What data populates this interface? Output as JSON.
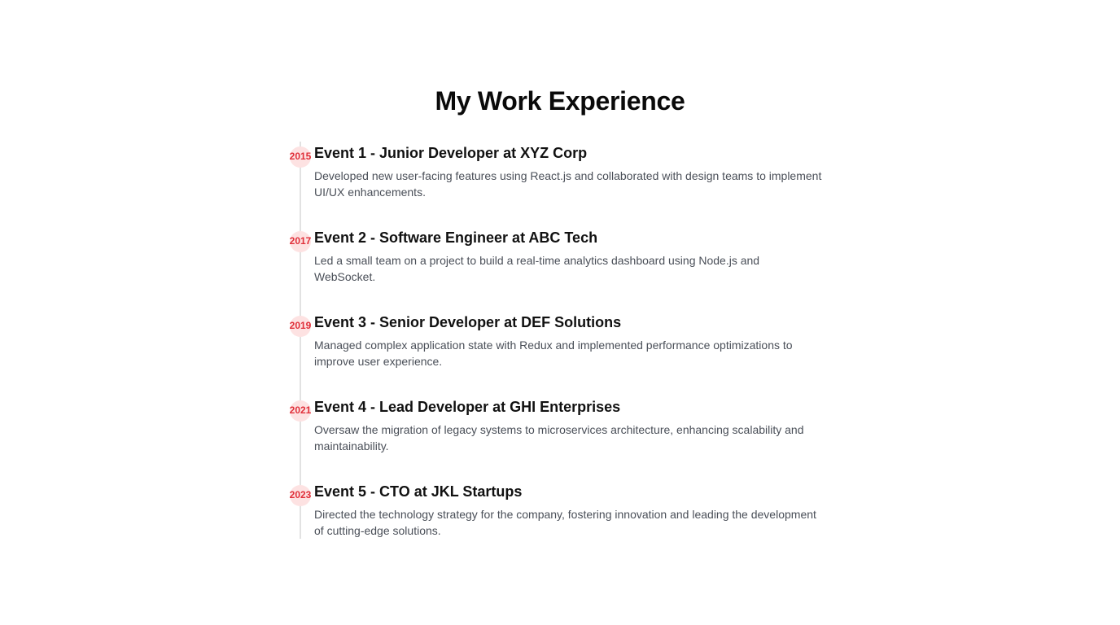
{
  "page": {
    "title": "My Work Experience"
  },
  "colors": {
    "accent": "#e0303a",
    "dot_background": "#fde2e2",
    "timeline_line": "#e2e2e2",
    "title_text": "#0a0a0a",
    "body_text": "#4a4f58"
  },
  "events": [
    {
      "year": "2015",
      "title": "Event 1 - Junior Developer at XYZ Corp",
      "description": "Developed new user-facing features using React.js and collaborated with design teams to implement UI/UX enhancements."
    },
    {
      "year": "2017",
      "title": "Event 2 - Software Engineer at ABC Tech",
      "description": "Led a small team on a project to build a real-time analytics dashboard using Node.js and WebSocket."
    },
    {
      "year": "2019",
      "title": "Event 3 - Senior Developer at DEF Solutions",
      "description": "Managed complex application state with Redux and implemented performance optimizations to improve user experience."
    },
    {
      "year": "2021",
      "title": "Event 4 - Lead Developer at GHI Enterprises",
      "description": "Oversaw the migration of legacy systems to microservices architecture, enhancing scalability and maintainability."
    },
    {
      "year": "2023",
      "title": "Event 5 - CTO at JKL Startups",
      "description": "Directed the technology strategy for the company, fostering innovation and leading the development of cutting-edge solutions."
    }
  ]
}
